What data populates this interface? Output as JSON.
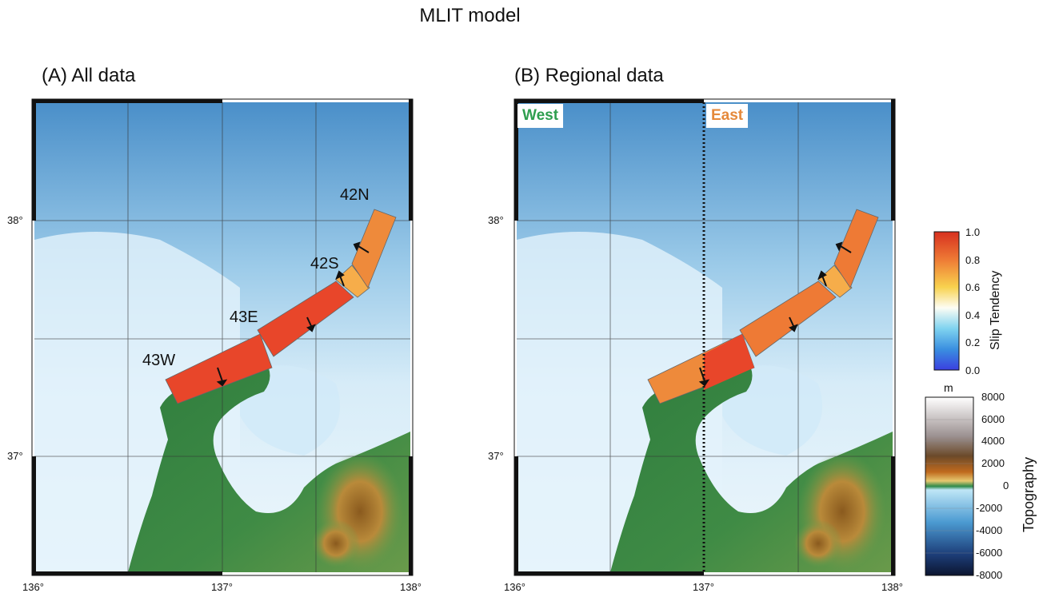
{
  "figure_title": "MLIT model",
  "panel_a": {
    "title": "(A) All data",
    "fault_labels": [
      "42N",
      "42S",
      "43E",
      "43W"
    ],
    "lat_labels": [
      "38°",
      "37°"
    ],
    "lon_labels": [
      "136°",
      "137°",
      "138°"
    ]
  },
  "panel_b": {
    "title": "(B) Regional data",
    "west_label": "West",
    "east_label": "East",
    "lat_labels": [
      "38°",
      "37°"
    ],
    "lon_labels": [
      "136°",
      "137°",
      "138°"
    ]
  },
  "slip_colorbar": {
    "label": "Slip Tendency",
    "ticks": [
      "1.0",
      "0.8",
      "0.6",
      "0.4",
      "0.2",
      "0.0"
    ]
  },
  "topo_colorbar": {
    "label": "Topography",
    "unit": "m",
    "ticks": [
      "8000",
      "6000",
      "4000",
      "2000",
      "0",
      "-2000",
      "-4000",
      "-6000",
      "-8000"
    ]
  },
  "colors": {
    "west_label": "#2e9e4e",
    "east_label": "#e5893b",
    "fault_high": "#e8462a",
    "fault_mid": "#ee7a35",
    "fault_low": "#f6ad4a"
  }
}
